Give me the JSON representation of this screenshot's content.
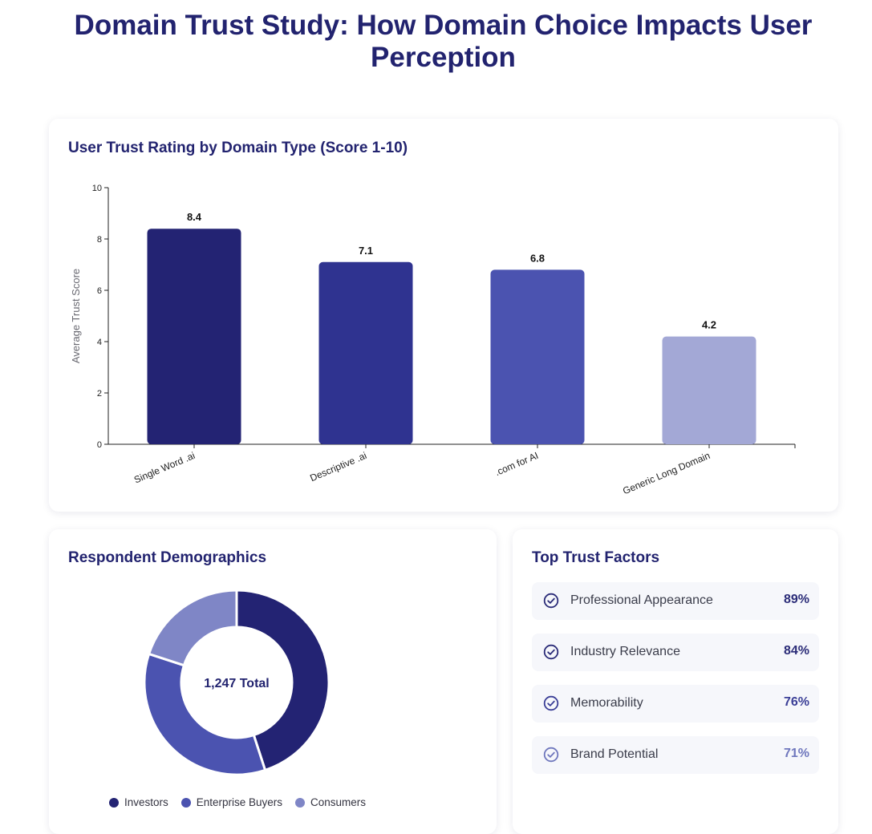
{
  "page": {
    "title_line1": "Domain Trust Study: How Domain Choice Impacts User",
    "title_line2": "Perception"
  },
  "chart_data": [
    {
      "type": "bar",
      "title": "User Trust Rating by Domain Type (Score 1-10)",
      "categories": [
        "Single Word .ai",
        "Descriptive .ai",
        ".com for AI",
        "Generic Long Domain"
      ],
      "values": [
        8.4,
        7.1,
        6.8,
        4.2
      ],
      "colors": [
        "#232373",
        "#2f3390",
        "#4b53b0",
        "#a3a8d6"
      ],
      "ylabel": "Average Trust Score",
      "xlabel": "",
      "ylim": [
        0,
        10
      ],
      "yticks": [
        0,
        2,
        4,
        6,
        8,
        10
      ],
      "grid": false,
      "data_labels": [
        "8.4",
        "7.1",
        "6.8",
        "4.2"
      ]
    },
    {
      "type": "pie",
      "subtype": "donut",
      "title": "Respondent Demographics",
      "center_label": "1,247 Total",
      "categories": [
        "Investors",
        "Enterprise Buyers",
        "Consumers"
      ],
      "values": [
        45,
        35,
        20
      ],
      "colors": [
        "#232373",
        "#4b53b0",
        "#7f86c6"
      ],
      "legend": "bottom"
    }
  ],
  "trust_factors": {
    "title": "Top Trust Factors",
    "items": [
      {
        "label": "Professional Appearance",
        "value": "89%",
        "color": "#2b2c78",
        "icon": "check-circle-icon"
      },
      {
        "label": "Industry Relevance",
        "value": "84%",
        "color": "#2b2c78",
        "icon": "check-circle-icon"
      },
      {
        "label": "Memorability",
        "value": "76%",
        "color": "#3b3f97",
        "icon": "check-circle-icon"
      },
      {
        "label": "Brand Potential",
        "value": "71%",
        "color": "#6f77bd",
        "icon": "check-circle-icon"
      }
    ]
  }
}
